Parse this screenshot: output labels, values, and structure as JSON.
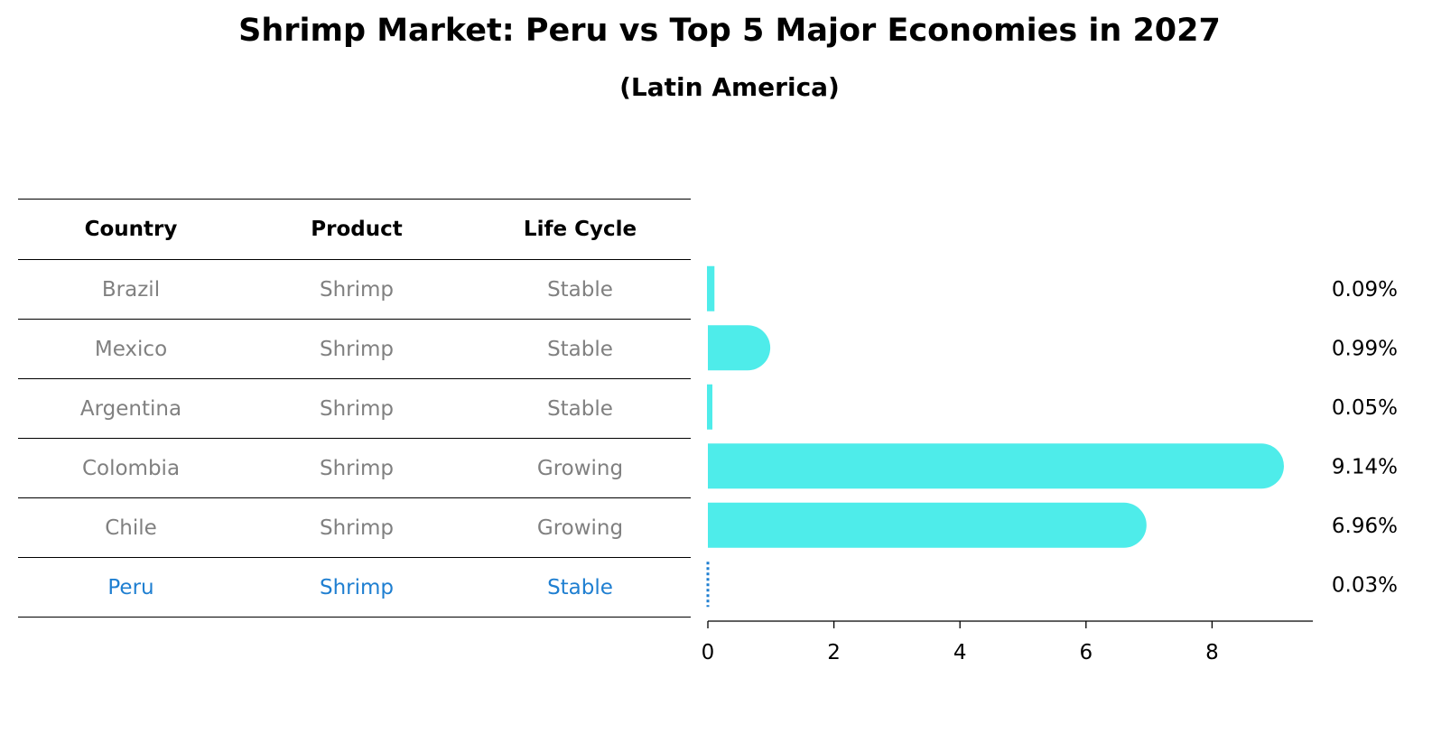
{
  "title": "Shrimp Market: Peru vs Top 5 Major Economies in 2027",
  "subtitle": "(Latin America)",
  "table": {
    "headers": [
      "Country",
      "Product",
      "Life Cycle"
    ],
    "rows": [
      {
        "country": "Brazil",
        "product": "Shrimp",
        "life_cycle": "Stable"
      },
      {
        "country": "Mexico",
        "product": "Shrimp",
        "life_cycle": "Stable"
      },
      {
        "country": "Argentina",
        "product": "Shrimp",
        "life_cycle": "Stable"
      },
      {
        "country": "Colombia",
        "product": "Shrimp",
        "life_cycle": "Growing"
      },
      {
        "country": "Chile",
        "product": "Shrimp",
        "life_cycle": "Growing"
      },
      {
        "country": "Peru",
        "product": "Shrimp",
        "life_cycle": "Stable"
      }
    ],
    "highlight_row": "Peru"
  },
  "colors": {
    "bar": "#4eecea",
    "highlight_text": "#1f7fd1",
    "default_text": "#808080"
  },
  "chart_data": {
    "type": "bar",
    "orientation": "horizontal",
    "categories": [
      "Brazil",
      "Mexico",
      "Argentina",
      "Colombia",
      "Chile",
      "Peru"
    ],
    "values": [
      0.09,
      0.99,
      0.05,
      9.14,
      6.96,
      0.03
    ],
    "value_labels": [
      "0.09%",
      "0.99%",
      "0.05%",
      "9.14%",
      "6.96%",
      "0.03%"
    ],
    "x_ticks": [
      0,
      2,
      4,
      6,
      8
    ],
    "xlim": [
      0,
      9.6
    ],
    "highlight": "Peru"
  }
}
